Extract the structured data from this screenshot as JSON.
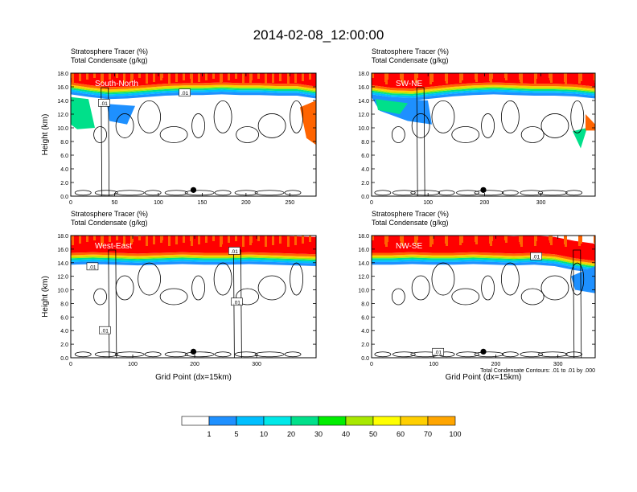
{
  "title": "2014-02-08_12:00:00",
  "colors": {
    "tracer_levels": [
      "#ffffff",
      "#1e90ff",
      "#00bfff",
      "#00e8e8",
      "#00e08a",
      "#00ee00",
      "#a8e800",
      "#ffff00",
      "#ffcf00",
      "#ffa500",
      "#ff6400",
      "#ff0000"
    ]
  },
  "chart_data": [
    {
      "type": "heatmap",
      "field_title_1": "Stratosphere Tracer   (%)",
      "field_title_2": "Total Condensate   (g/kg)",
      "panel_label": "South-North",
      "ylabel": "Height (km)",
      "xlabel": "",
      "xlim": [
        0,
        280
      ],
      "ylim": [
        0,
        18
      ],
      "xticks": [
        0,
        50,
        100,
        150,
        200,
        250
      ],
      "yticks": [
        "0.0",
        "2.0",
        "4.0",
        "6.0",
        "8.0",
        "10.0",
        "12.0",
        "14.0",
        "16.0",
        "18.0"
      ],
      "tracer_top_km": [
        16.2,
        15.8,
        15.5,
        15.6,
        15.8,
        16.0,
        16.1,
        16.1,
        16.2,
        16.1,
        16.1,
        16.0,
        16.0,
        15.6
      ],
      "location_marker": {
        "x": 140,
        "y": 0.9
      },
      "contour_labels": [
        {
          "text": ".01",
          "x": 38,
          "y": 13.6
        },
        {
          "text": ".01",
          "x": 130,
          "y": 15.1
        }
      ]
    },
    {
      "type": "heatmap",
      "field_title_1": "Stratosphere Tracer   (%)",
      "field_title_2": "Total Condensate   (g/kg)",
      "panel_label": "SW-NE",
      "ylabel": "",
      "xlabel": "",
      "xlim": [
        0,
        396
      ],
      "ylim": [
        0,
        18
      ],
      "xticks": [
        0,
        100,
        200,
        300
      ],
      "yticks": [
        "0.0",
        "2.0",
        "4.0",
        "6.0",
        "8.0",
        "10.0",
        "12.0",
        "14.0",
        "16.0",
        "18.0"
      ],
      "tracer_top_km": [
        15.8,
        15.4,
        15.3,
        15.6,
        15.9,
        16.1,
        16.2,
        16.1,
        16.0,
        16.0,
        15.9,
        15.6
      ],
      "location_marker": {
        "x": 198,
        "y": 0.9
      },
      "contour_labels": []
    },
    {
      "type": "heatmap",
      "field_title_1": "Stratosphere Tracer   (%)",
      "field_title_2": "Total Condensate   (g/kg)",
      "panel_label": "West-East",
      "ylabel": "Height (km)",
      "xlabel": "Grid Point (dx=15km)",
      "xlim": [
        0,
        396
      ],
      "ylim": [
        0,
        18
      ],
      "xticks": [
        0,
        100,
        200,
        300
      ],
      "yticks": [
        "0.0",
        "2.0",
        "4.0",
        "6.0",
        "8.0",
        "10.0",
        "12.0",
        "14.0",
        "16.0",
        "18.0"
      ],
      "tracer_top_km": [
        15.0,
        15.1,
        15.0,
        14.9,
        15.0,
        15.1,
        15.0,
        15.0,
        15.1,
        15.0,
        14.9,
        14.8
      ],
      "location_marker": {
        "x": 198,
        "y": 0.9
      },
      "contour_labels": [
        {
          "text": ".01",
          "x": 35,
          "y": 13.4
        },
        {
          "text": ".01",
          "x": 55,
          "y": 4.0
        },
        {
          "text": ".01",
          "x": 264,
          "y": 15.7
        },
        {
          "text": ".01",
          "x": 268,
          "y": 8.2
        }
      ]
    },
    {
      "type": "heatmap",
      "field_title_1": "Stratosphere Tracer   (%)",
      "field_title_2": "Total Condensate   (g/kg)",
      "panel_label": "NW-SE",
      "ylabel": "",
      "xlabel": "Grid Point (dx=15km)",
      "xlim": [
        0,
        360
      ],
      "ylim": [
        0,
        18
      ],
      "xticks": [
        0,
        100,
        200,
        300
      ],
      "yticks": [
        "0.0",
        "2.0",
        "4.0",
        "6.0",
        "8.0",
        "10.0",
        "12.0",
        "14.0",
        "16.0",
        "18.0"
      ],
      "tracer_top_km": [
        15.0,
        15.0,
        15.1,
        15.0,
        15.0,
        15.1,
        15.0,
        14.9,
        15.0,
        14.8,
        14.2,
        13.8
      ],
      "location_marker": {
        "x": 180,
        "y": 0.9
      },
      "contour_labels": [
        {
          "text": ".01",
          "x": 107,
          "y": 0.8
        },
        {
          "text": ".01",
          "x": 265,
          "y": 14.9
        }
      ],
      "footnote": "Total Condensate Contours: .01 to .01 by .000"
    }
  ],
  "colorbar": {
    "labels": [
      "1",
      "5",
      "10",
      "20",
      "30",
      "40",
      "50",
      "60",
      "70",
      "100"
    ]
  }
}
